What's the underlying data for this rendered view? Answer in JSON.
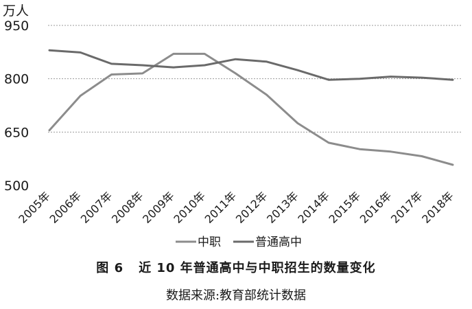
{
  "chart_data": {
    "type": "line",
    "unit_label": "万人",
    "categories": [
      "2005年",
      "2006年",
      "2007年",
      "2008年",
      "2009年",
      "2010年",
      "2011年",
      "2012年",
      "2013年",
      "2014年",
      "2015年",
      "2016年",
      "2017年",
      "2018年"
    ],
    "y_ticks": [
      "950",
      "800",
      "650",
      "500"
    ],
    "ylim": [
      500,
      950
    ],
    "grid": "horizontal dotted",
    "legend_position": "bottom",
    "series": [
      {
        "name": "中职",
        "color": "#8c8c8c",
        "values": [
          655,
          752,
          812,
          815,
          870,
          870,
          815,
          755,
          675,
          620,
          602,
          595,
          582,
          558
        ]
      },
      {
        "name": "普通高中",
        "color": "#6a6a6a",
        "values": [
          880,
          874,
          842,
          838,
          832,
          838,
          855,
          848,
          824,
          797,
          800,
          806,
          803,
          797
        ]
      }
    ]
  },
  "figure": {
    "number": "图 6",
    "title": "近 10 年普通高中与中职招生的数量变化",
    "source": "数据来源:教育部统计数据"
  }
}
